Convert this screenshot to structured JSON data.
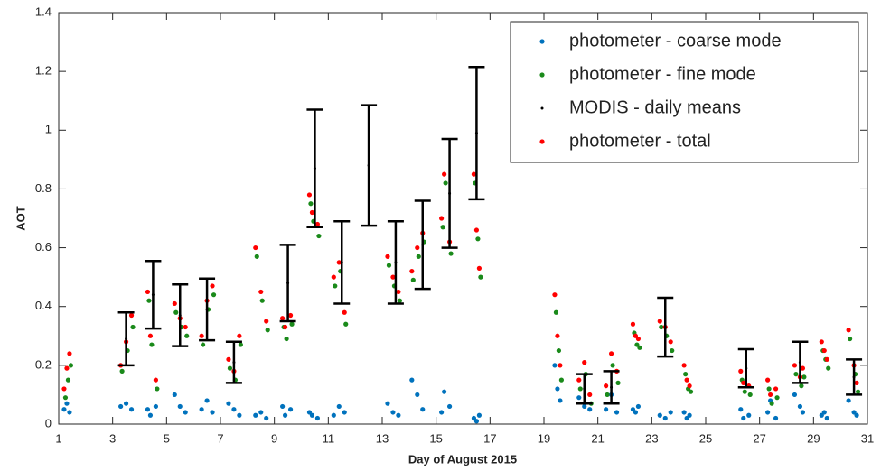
{
  "chart_data": {
    "type": "scatter",
    "x_label": "Day of August 2015",
    "y_label": "AOT",
    "xlim": [
      1,
      31
    ],
    "xticks": [
      1,
      3,
      5,
      7,
      9,
      11,
      13,
      15,
      17,
      19,
      21,
      23,
      25,
      27,
      29,
      31
    ],
    "ylim": [
      0,
      1.4
    ],
    "yticks": [
      0,
      0.2,
      0.4,
      0.6,
      0.8,
      1,
      1.2,
      1.4
    ],
    "legend": "upper right",
    "series": [
      {
        "name": "photometer - coarse mode",
        "color": "#0072bd",
        "x": [
          1.2,
          1.3,
          1.4,
          3.3,
          3.5,
          3.7,
          4.3,
          4.4,
          4.6,
          5.3,
          5.5,
          5.7,
          6.3,
          6.5,
          6.7,
          7.3,
          7.5,
          7.7,
          8.3,
          8.5,
          8.7,
          9.3,
          9.4,
          9.6,
          10.3,
          10.4,
          10.6,
          11.2,
          11.4,
          11.6,
          13.2,
          13.4,
          13.6,
          14.1,
          14.3,
          14.5,
          15.2,
          15.3,
          15.5,
          16.4,
          16.5,
          16.6,
          19.4,
          19.5,
          19.6,
          20.3,
          20.5,
          20.7,
          21.3,
          21.5,
          21.7,
          22.3,
          22.4,
          22.5,
          23.3,
          23.5,
          23.7,
          24.2,
          24.3,
          24.4,
          26.3,
          26.4,
          26.6,
          27.3,
          27.4,
          27.6,
          28.3,
          28.5,
          28.6,
          29.3,
          29.4,
          29.5,
          30.3,
          30.5,
          30.6
        ],
        "values": [
          0.05,
          0.07,
          0.04,
          0.06,
          0.07,
          0.05,
          0.05,
          0.03,
          0.06,
          0.1,
          0.06,
          0.04,
          0.05,
          0.08,
          0.04,
          0.07,
          0.05,
          0.03,
          0.03,
          0.04,
          0.02,
          0.06,
          0.03,
          0.05,
          0.04,
          0.03,
          0.02,
          0.03,
          0.06,
          0.04,
          0.07,
          0.04,
          0.03,
          0.15,
          0.1,
          0.05,
          0.04,
          0.11,
          0.06,
          0.02,
          0.01,
          0.03,
          0.2,
          0.12,
          0.08,
          0.09,
          0.06,
          0.05,
          0.05,
          0.1,
          0.04,
          0.05,
          0.04,
          0.06,
          0.03,
          0.02,
          0.04,
          0.04,
          0.02,
          0.03,
          0.05,
          0.02,
          0.03,
          0.04,
          0.08,
          0.02,
          0.1,
          0.06,
          0.04,
          0.03,
          0.04,
          0.02,
          0.08,
          0.04,
          0.03
        ]
      },
      {
        "name": "photometer - fine mode",
        "color": "#1a8a1a",
        "x": [
          1.25,
          1.35,
          1.45,
          3.35,
          3.55,
          3.75,
          4.35,
          4.45,
          4.65,
          5.35,
          5.55,
          5.75,
          6.35,
          6.55,
          6.75,
          7.35,
          7.55,
          7.75,
          8.35,
          8.55,
          8.75,
          9.35,
          9.45,
          9.65,
          10.35,
          10.45,
          10.65,
          11.25,
          11.45,
          11.65,
          13.25,
          13.45,
          13.65,
          14.15,
          14.35,
          14.55,
          15.25,
          15.35,
          15.55,
          16.45,
          16.55,
          16.65,
          19.45,
          19.55,
          19.65,
          20.35,
          20.55,
          20.75,
          21.35,
          21.55,
          21.75,
          22.35,
          22.45,
          22.55,
          23.35,
          23.55,
          23.75,
          24.25,
          24.35,
          24.45,
          26.35,
          26.45,
          26.65,
          27.35,
          27.45,
          27.65,
          28.35,
          28.55,
          28.65,
          29.35,
          29.45,
          29.55,
          30.35,
          30.55,
          30.65
        ],
        "values": [
          0.09,
          0.15,
          0.2,
          0.18,
          0.25,
          0.33,
          0.42,
          0.27,
          0.12,
          0.38,
          0.33,
          0.3,
          0.27,
          0.39,
          0.44,
          0.19,
          0.15,
          0.27,
          0.57,
          0.42,
          0.32,
          0.33,
          0.29,
          0.34,
          0.75,
          0.69,
          0.64,
          0.47,
          0.52,
          0.34,
          0.54,
          0.47,
          0.42,
          0.49,
          0.57,
          0.62,
          0.67,
          0.82,
          0.58,
          0.82,
          0.63,
          0.5,
          0.38,
          0.25,
          0.15,
          0.12,
          0.17,
          0.07,
          0.1,
          0.2,
          0.14,
          0.31,
          0.27,
          0.26,
          0.33,
          0.3,
          0.25,
          0.17,
          0.12,
          0.11,
          0.15,
          0.11,
          0.1,
          0.12,
          0.07,
          0.09,
          0.17,
          0.13,
          0.16,
          0.25,
          0.22,
          0.19,
          0.29,
          0.17,
          0.11
        ]
      },
      {
        "name": "MODIS - daily means",
        "color": "#000000",
        "x": [
          3.5,
          4.5,
          5.5,
          6.5,
          7.5,
          9.5,
          10.5,
          11.5,
          12.5,
          13.5,
          14.5,
          15.5,
          16.5,
          20.5,
          21.5,
          23.5,
          26.5,
          28.5,
          30.5
        ],
        "values": [
          0.29,
          0.44,
          0.37,
          0.39,
          0.21,
          0.48,
          0.87,
          0.55,
          0.88,
          0.55,
          0.61,
          0.785,
          0.99,
          0.12,
          0.125,
          0.33,
          0.19,
          0.21,
          0.16
        ],
        "errors": [
          0.09,
          0.115,
          0.105,
          0.105,
          0.07,
          0.13,
          0.2,
          0.14,
          0.205,
          0.14,
          0.15,
          0.185,
          0.225,
          0.05,
          0.055,
          0.1,
          0.065,
          0.07,
          0.06
        ]
      },
      {
        "name": "photometer - total",
        "color": "#ff0000",
        "x": [
          1.2,
          1.3,
          1.4,
          3.3,
          3.5,
          3.7,
          4.3,
          4.4,
          4.6,
          5.3,
          5.5,
          5.7,
          6.3,
          6.5,
          6.7,
          7.3,
          7.5,
          7.7,
          8.3,
          8.5,
          8.7,
          9.3,
          9.4,
          9.6,
          10.3,
          10.4,
          10.6,
          11.2,
          11.4,
          11.6,
          13.2,
          13.4,
          13.6,
          14.1,
          14.3,
          14.5,
          15.2,
          15.3,
          15.5,
          16.4,
          16.5,
          16.6,
          19.4,
          19.5,
          19.6,
          20.3,
          20.5,
          20.7,
          21.3,
          21.5,
          21.7,
          22.3,
          22.4,
          22.5,
          23.3,
          23.5,
          23.7,
          24.2,
          24.3,
          24.4,
          26.3,
          26.4,
          26.6,
          27.3,
          27.4,
          27.6,
          28.3,
          28.5,
          28.6,
          29.3,
          29.4,
          29.5,
          30.3,
          30.5,
          30.6
        ],
        "values": [
          0.12,
          0.19,
          0.24,
          0.2,
          0.28,
          0.37,
          0.45,
          0.3,
          0.15,
          0.41,
          0.36,
          0.33,
          0.3,
          0.42,
          0.47,
          0.22,
          0.18,
          0.3,
          0.6,
          0.45,
          0.35,
          0.36,
          0.33,
          0.37,
          0.78,
          0.72,
          0.68,
          0.5,
          0.55,
          0.38,
          0.57,
          0.5,
          0.45,
          0.52,
          0.6,
          0.65,
          0.7,
          0.85,
          0.62,
          0.85,
          0.66,
          0.53,
          0.44,
          0.3,
          0.2,
          0.15,
          0.21,
          0.1,
          0.13,
          0.24,
          0.18,
          0.34,
          0.3,
          0.29,
          0.35,
          0.33,
          0.28,
          0.2,
          0.15,
          0.13,
          0.18,
          0.14,
          0.13,
          0.15,
          0.1,
          0.12,
          0.2,
          0.16,
          0.19,
          0.28,
          0.25,
          0.22,
          0.32,
          0.2,
          0.14
        ]
      }
    ]
  }
}
